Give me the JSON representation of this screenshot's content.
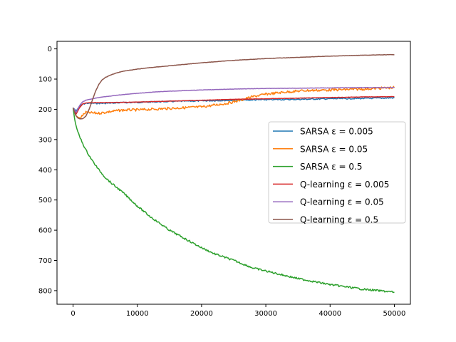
{
  "chart_data": {
    "type": "line",
    "title": "",
    "xlabel": "",
    "ylabel": "",
    "xlim": [
      -2500,
      52500
    ],
    "ylim": [
      845,
      -25
    ],
    "y_inverted": true,
    "grid": false,
    "legend_position": "right",
    "x_ticks": [
      0,
      10000,
      20000,
      30000,
      40000,
      50000
    ],
    "y_ticks": [
      0,
      100,
      200,
      300,
      400,
      500,
      600,
      700,
      800
    ],
    "series": [
      {
        "name": "SARSA ε = 0.005",
        "color": "#1f77b4",
        "x": [
          0,
          500,
          1000,
          1500,
          2000,
          3000,
          5000,
          7500,
          10000,
          15000,
          20000,
          25000,
          30000,
          35000,
          40000,
          45000,
          50000
        ],
        "y": [
          195,
          205,
          190,
          183,
          180,
          180,
          180,
          178,
          177,
          174,
          172,
          170,
          168,
          167,
          165,
          164,
          162
        ],
        "noise": 2
      },
      {
        "name": "SARSA ε = 0.05",
        "color": "#ff7f0e",
        "x": [
          0,
          500,
          1000,
          1500,
          2000,
          3000,
          4000,
          5000,
          6000,
          7500,
          9000,
          10000,
          12000,
          14000,
          16000,
          18000,
          20000,
          22000,
          24000,
          25000,
          26000,
          28000,
          30000,
          33000,
          36000,
          40000,
          45000,
          50000
        ],
        "y": [
          195,
          222,
          230,
          220,
          210,
          212,
          213,
          210,
          207,
          203,
          202,
          202,
          200,
          198,
          196,
          194,
          192,
          186,
          180,
          175,
          170,
          158,
          150,
          143,
          138,
          136,
          133,
          128
        ],
        "noise": 4
      },
      {
        "name": "SARSA ε = 0.5",
        "color": "#2ca02c",
        "x": [
          0,
          300,
          600,
          1000,
          2000,
          3000,
          4000,
          5000,
          6000,
          7000,
          8000,
          10000,
          12000,
          15000,
          18000,
          20000,
          22000,
          25000,
          28000,
          30000,
          35000,
          40000,
          45000,
          50000
        ],
        "y": [
          195,
          240,
          265,
          290,
          335,
          370,
          400,
          425,
          445,
          462,
          480,
          520,
          555,
          600,
          635,
          658,
          678,
          700,
          725,
          735,
          760,
          780,
          795,
          805
        ],
        "noise": 3
      },
      {
        "name": "Q-learning ε = 0.005",
        "color": "#d62728",
        "x": [
          0,
          500,
          1000,
          1500,
          2000,
          3000,
          5000,
          7500,
          10000,
          15000,
          20000,
          25000,
          30000,
          35000,
          40000,
          45000,
          50000
        ],
        "y": [
          195,
          215,
          195,
          182,
          179,
          178,
          178,
          177,
          176,
          173,
          170,
          167,
          165,
          163,
          161,
          159,
          158
        ],
        "noise": 0.5
      },
      {
        "name": "Q-learning ε = 0.05",
        "color": "#9467bd",
        "x": [
          0,
          500,
          1000,
          1500,
          2000,
          3000,
          4000,
          5000,
          7500,
          10000,
          12500,
          15000,
          20000,
          25000,
          30000,
          35000,
          40000,
          45000,
          50000
        ],
        "y": [
          195,
          210,
          188,
          175,
          170,
          165,
          161,
          158,
          152,
          147,
          143,
          140,
          136,
          133,
          131,
          130,
          129,
          128,
          128
        ],
        "noise": 0.5
      },
      {
        "name": "Q-learning ε = 0.5",
        "color": "#8c564b",
        "x": [
          0,
          400,
          800,
          1200,
          1600,
          2000,
          2500,
          3000,
          3500,
          4000,
          4500,
          5000,
          6000,
          7000,
          8000,
          9000,
          10000,
          12000,
          15000,
          20000,
          25000,
          30000,
          35000,
          40000,
          45000,
          50000
        ],
        "y": [
          195,
          220,
          230,
          232,
          230,
          222,
          200,
          170,
          140,
          118,
          103,
          95,
          85,
          78,
          73,
          70,
          67,
          62,
          56,
          46,
          38,
          32,
          28,
          24,
          21,
          19
        ],
        "noise": 0.5
      }
    ]
  }
}
